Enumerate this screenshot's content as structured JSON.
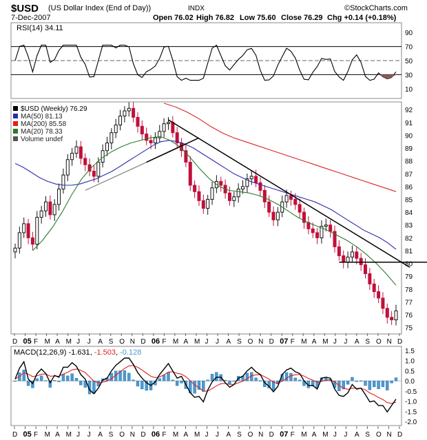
{
  "header": {
    "symbol": "$USD",
    "name": "(US Dollar Index (End of Day))",
    "exchange": "INDX",
    "date": "7-Dec-2007",
    "source": "©StockCharts.com",
    "open": "Open 76.02",
    "high": "High 76.82",
    "low": "Low 75.60",
    "close": "Close 76.29",
    "chg": "Chg +0.14 (+0.18%)"
  },
  "rsi_panel": {
    "label": "RSI(14) 34.11",
    "ticks": [
      90,
      70,
      50,
      30,
      10
    ],
    "overbought": 70,
    "mid": 50,
    "oversold": 30
  },
  "price_panel": {
    "legend": [
      {
        "label": "$USD (Weekly) 76.29",
        "color": "#000000"
      },
      {
        "label": "MA(50) 81.13",
        "color": "#2b2bab"
      },
      {
        "label": "MA(200) 85.58",
        "color": "#e02020"
      },
      {
        "label": "MA(20) 78.33",
        "color": "#2a7a2a"
      },
      {
        "label": "Volume undef",
        "color": "#555555"
      }
    ],
    "ticks": [
      92,
      91,
      90,
      89,
      88,
      87,
      86,
      85,
      84,
      83,
      82,
      81,
      80,
      79,
      78,
      77,
      76,
      75
    ]
  },
  "macd_panel": {
    "label_prefix": "MACD(12,26,9)",
    "macd": "-1.631",
    "signal": "-1.503",
    "hist": "-0.128",
    "ticks": [
      "1.5",
      "1.0",
      "0.5",
      "0.0",
      "-0.5",
      "-1.0",
      "-1.5",
      "-2.0"
    ]
  },
  "x_axis": {
    "labels": [
      "D",
      "05",
      "F",
      "M",
      "A",
      "M",
      "J",
      "J",
      "A",
      "S",
      "O",
      "N",
      "D",
      "06",
      "F",
      "M",
      "A",
      "M",
      "J",
      "J",
      "A",
      "S",
      "O",
      "N",
      "D",
      "07",
      "F",
      "M",
      "A",
      "M",
      "J",
      "J",
      "A",
      "S",
      "O",
      "N",
      "D"
    ]
  },
  "colors": {
    "up": "#111111",
    "down": "#c0103a",
    "ma50": "#2b2bab",
    "ma200": "#e02020",
    "ma20": "#2a7a2a",
    "macd_line": "#000000",
    "signal_line": "#e02020",
    "histogram": "#4a9ad4",
    "rsi_fill_low": "#8b5a5a",
    "trendline": "#000000"
  },
  "chart_data": {
    "type": "candlestick",
    "title": "$USD (US Dollar Index (End of Day))",
    "period": "Weekly",
    "ylim": [
      74.5,
      92.6
    ],
    "weekly_close": [
      81.2,
      82.4,
      83.1,
      82.0,
      81.5,
      83.6,
      84.1,
      84.8,
      83.8,
      84.6,
      85.8,
      86.9,
      88.1,
      88.6,
      89.1,
      88.2,
      87.7,
      87.2,
      86.8,
      87.9,
      88.8,
      89.4,
      90.2,
      90.8,
      91.5,
      91.9,
      92.1,
      91.4,
      90.7,
      90.1,
      89.6,
      89.4,
      89.8,
      90.3,
      90.9,
      91.0,
      90.2,
      89.4,
      88.8,
      87.9,
      86.1,
      85.6,
      84.9,
      84.3,
      85.0,
      85.9,
      86.4,
      86.1,
      85.5,
      84.9,
      85.2,
      85.8,
      86.0,
      86.6,
      86.8,
      86.3,
      85.7,
      84.8,
      84.0,
      83.4,
      84.0,
      84.8,
      85.3,
      85.0,
      84.6,
      84.0,
      83.2,
      82.7,
      82.4,
      82.0,
      82.9,
      83.0,
      82.5,
      81.3,
      80.6,
      80.1,
      80.5,
      80.9,
      80.4,
      79.9,
      79.2,
      78.4,
      77.8,
      77.3,
      76.5,
      75.8,
      75.6,
      76.3
    ],
    "ma50": [
      87.8,
      87.5,
      87.1,
      86.7,
      86.4,
      86.2,
      86.1,
      86.1,
      86.2,
      86.4,
      86.6,
      86.9,
      87.2,
      87.6,
      88.0,
      88.4,
      88.8,
      89.2,
      89.5,
      89.6,
      89.5,
      89.3,
      89.0,
      88.6,
      88.2,
      87.8,
      87.4,
      87.0,
      86.7,
      86.4,
      86.2,
      86.0,
      85.8,
      85.6,
      85.4,
      85.2,
      85.0,
      84.8,
      84.5,
      84.2,
      83.8,
      83.4,
      83.0,
      82.6,
      82.3,
      82.0,
      81.6,
      81.1
    ],
    "ma200": [
      92.5,
      92.2,
      91.8,
      91.3,
      90.7,
      90.2,
      89.8,
      89.5,
      89.2,
      88.9,
      88.6,
      88.3,
      88.0,
      87.7,
      87.4,
      87.1,
      86.8,
      86.5,
      86.2,
      85.9,
      85.6
    ],
    "ma20": [
      81.0,
      81.8,
      82.8,
      84.0,
      85.4,
      86.6,
      87.5,
      88.2,
      88.7,
      89.1,
      89.4,
      89.6,
      89.8,
      89.9,
      89.6,
      89.1,
      88.3,
      87.4,
      86.6,
      86.0,
      85.7,
      85.6,
      85.5,
      85.3,
      85.0,
      84.6,
      84.1,
      83.6,
      83.2,
      82.9,
      82.6,
      82.2,
      81.8,
      81.3,
      80.7,
      80.0,
      79.2,
      78.3
    ]
  }
}
